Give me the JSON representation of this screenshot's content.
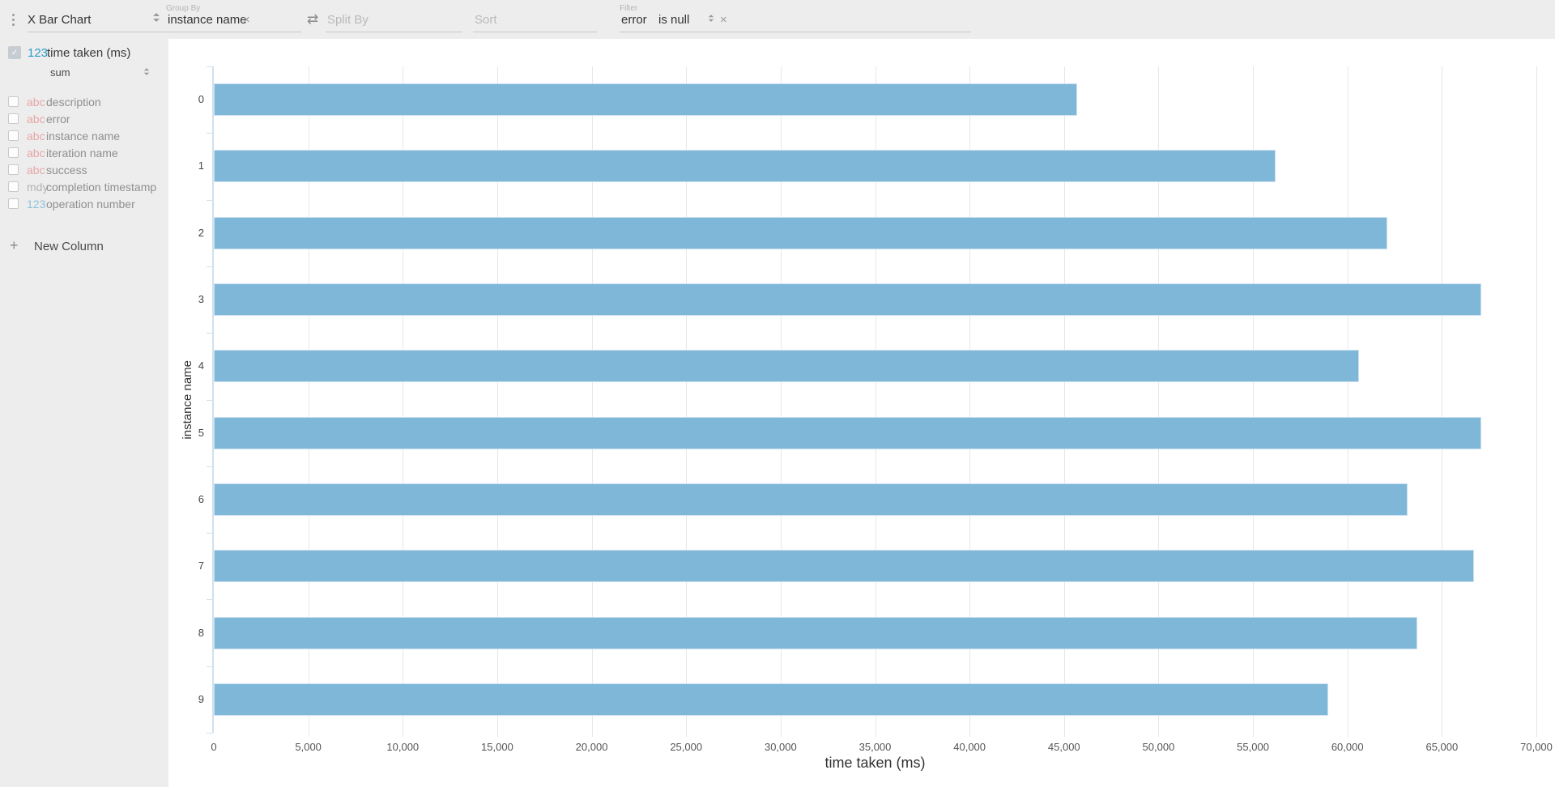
{
  "toolbar": {
    "chart_type_label": "X Bar Chart",
    "group_by": {
      "label": "Group By",
      "value": "instance name"
    },
    "split_by": {
      "placeholder": "Split By"
    },
    "sort": {
      "placeholder": "Sort"
    },
    "filter": {
      "label": "Filter",
      "field": "error",
      "operator": "is null"
    }
  },
  "sidebar": {
    "metric": {
      "type_tag": "123",
      "name": "time taken (ms)",
      "aggregation": "sum",
      "checked": true
    },
    "columns": [
      {
        "type_tag": "abc",
        "name": "description"
      },
      {
        "type_tag": "abc",
        "name": "error"
      },
      {
        "type_tag": "abc",
        "name": "instance name"
      },
      {
        "type_tag": "abc",
        "name": "iteration name"
      },
      {
        "type_tag": "abc",
        "name": "success"
      },
      {
        "type_tag": "mdy",
        "name": "completion timestamp"
      },
      {
        "type_tag": "123",
        "name": "operation number"
      }
    ],
    "new_column_label": "New Column"
  },
  "chart_data": {
    "type": "bar",
    "orientation": "horizontal",
    "categories": [
      "0",
      "1",
      "2",
      "3",
      "4",
      "5",
      "6",
      "7",
      "8",
      "9"
    ],
    "values": [
      45700,
      56200,
      62100,
      67100,
      60600,
      67100,
      63200,
      66700,
      63700,
      59000
    ],
    "xlabel": "time taken (ms)",
    "ylabel": "instance name",
    "xlim": [
      0,
      70000
    ],
    "xticks": [
      {
        "value": 0,
        "label": "0"
      },
      {
        "value": 5000,
        "label": "5,000"
      },
      {
        "value": 10000,
        "label": "10,000"
      },
      {
        "value": 15000,
        "label": "15,000"
      },
      {
        "value": 20000,
        "label": "20,000"
      },
      {
        "value": 25000,
        "label": "25,000"
      },
      {
        "value": 30000,
        "label": "30,000"
      },
      {
        "value": 35000,
        "label": "35,000"
      },
      {
        "value": 40000,
        "label": "40,000"
      },
      {
        "value": 45000,
        "label": "45,000"
      },
      {
        "value": 50000,
        "label": "50,000"
      },
      {
        "value": 55000,
        "label": "55,000"
      },
      {
        "value": 60000,
        "label": "60,000"
      },
      {
        "value": 65000,
        "label": "65,000"
      },
      {
        "value": 70000,
        "label": "70,000"
      }
    ],
    "grid": true,
    "legend": false,
    "bar_color": "#7fb7d9"
  },
  "icons": {
    "close": "×",
    "plus": "+",
    "swap": "⇄",
    "check": "✓"
  }
}
